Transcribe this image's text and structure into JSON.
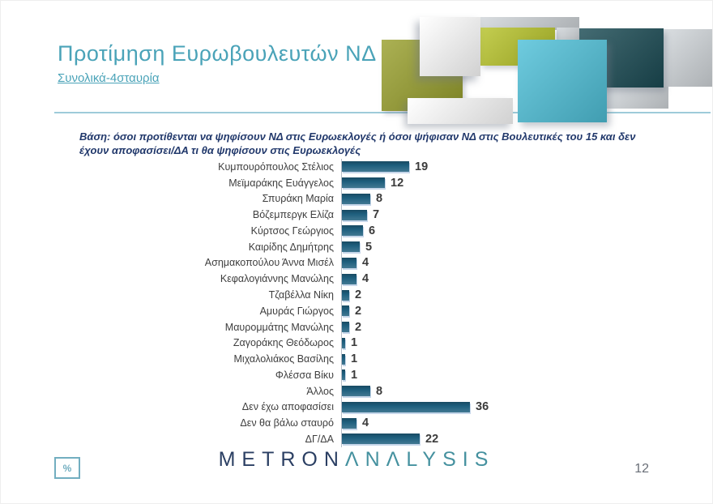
{
  "header": {
    "title": "Προτίμηση Ευρωβουλευτών ΝΔ",
    "subtitle": "Συνολικά-4σταυρία"
  },
  "base_note": "Βάση: όσοι προτίθενται να ψηφίσουν ΝΔ στις Ευρωεκλογές ή όσοι ψήφισαν ΝΔ στις Βουλευτικές του 15 και δεν έχουν αποφασίσει/ΔΑ τι θα ψηφίσουν στις Ευρωεκλογές",
  "chart_data": {
    "type": "bar",
    "orientation": "horizontal",
    "unit": "%",
    "categories": [
      "Κυμπουρόπουλος Στέλιος",
      "Μεϊμαράκης Ευάγγελος",
      "Σπυράκη Μαρία",
      "Βόζεμπεργκ Ελίζα",
      "Κύρτσος Γεώργιος",
      "Καιρίδης Δημήτρης",
      "Ασημακοπούλου Άννα Μισέλ",
      "Κεφαλογιάννης Μανώλης",
      "Τζαβέλλα Νίκη",
      "Αμυράς Γιώργος",
      "Μαυρομμάτης Μανώλης",
      "Ζαγοράκης Θεόδωρος",
      "Μιχαλολιάκος Βασίλης",
      "Φλέσσα Βίκυ",
      "Άλλος",
      "Δεν έχω αποφασίσει",
      "Δεν θα βάλω σταυρό",
      "ΔΓ/ΔΑ"
    ],
    "values": [
      19,
      12,
      8,
      7,
      6,
      5,
      4,
      4,
      2,
      2,
      2,
      1,
      1,
      1,
      8,
      36,
      4,
      22
    ],
    "xlim": [
      0,
      40
    ],
    "value_labels_shown": true,
    "grid": false,
    "legend": false
  },
  "footer": {
    "percent_label": "%",
    "logo_part1": "METRON",
    "logo_part2": "ΛNΛLYSIS",
    "page_number": "12"
  },
  "colors": {
    "bar": "#1e5f7e",
    "title_accent": "#4aa3b8",
    "note": "#21386b",
    "logo_primary": "#2b3f63",
    "logo_secondary": "#45919f",
    "percent_accent": "#72aec0",
    "decor": {
      "olive": "#99a02e",
      "lime": "#b7c32a",
      "light_teal": "#4fc0d8",
      "dark_teal": "#1b4b54",
      "gray": "#d2d7db",
      "white": "#ffffff"
    }
  }
}
